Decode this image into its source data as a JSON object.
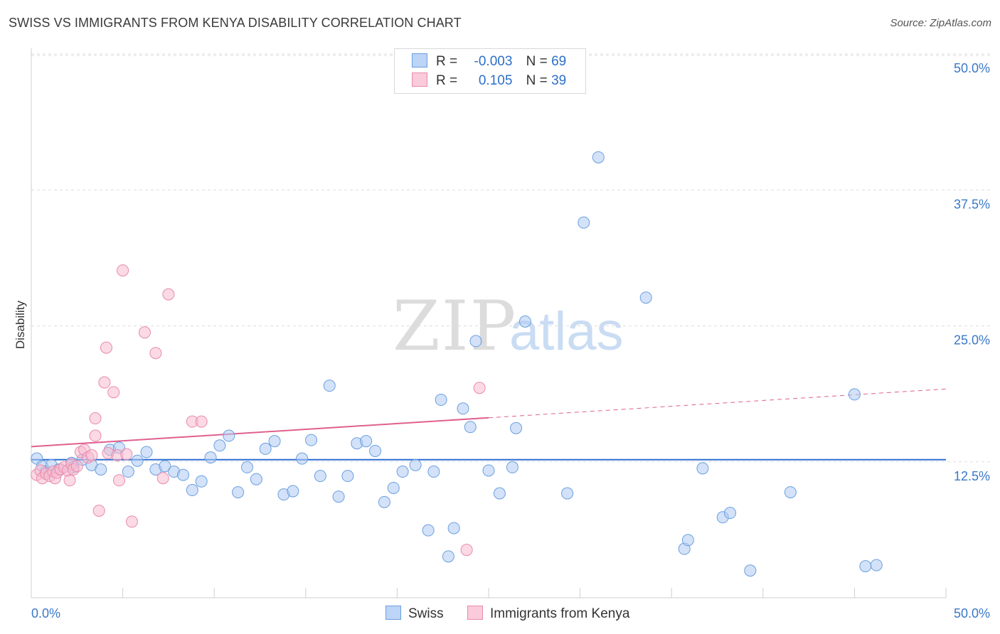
{
  "title": "SWISS VS IMMIGRANTS FROM KENYA DISABILITY CORRELATION CHART",
  "source": "Source: ZipAtlas.com",
  "watermark": {
    "zip": "ZIP",
    "atlas": "atlas"
  },
  "legend": {
    "swiss": {
      "r_label": "R =",
      "r_value": "-0.003",
      "n_label": "N =",
      "n_value": "69"
    },
    "kenya": {
      "r_label": "R =",
      "r_value": "0.105",
      "n_label": "N =",
      "n_value": "39"
    }
  },
  "bottom_legend": {
    "swiss": "Swiss",
    "kenya": "Immigrants from Kenya"
  },
  "colors": {
    "swiss_fill": "#aecbf2",
    "swiss_stroke": "#6a9fe0",
    "swiss_line": "#2c6fd1",
    "kenya_fill": "#f7bcd0",
    "kenya_stroke": "#e98aab",
    "kenya_line": "#e0608f",
    "grid": "#dddddd",
    "axis_label": "#3b78c8"
  },
  "chart_data": {
    "type": "scatter",
    "title": "SWISS VS IMMIGRANTS FROM KENYA DISABILITY CORRELATION CHART",
    "xlabel": "",
    "ylabel": "Disability",
    "xlim": [
      0,
      50
    ],
    "ylim": [
      0,
      50
    ],
    "x_tick_labels": [
      "0.0%",
      "50.0%"
    ],
    "y_ticks": [
      12.5,
      25.0,
      37.5,
      50.0
    ],
    "y_tick_labels": [
      "12.5%",
      "25.0%",
      "37.5%",
      "50.0%"
    ],
    "series": [
      {
        "name": "Swiss",
        "r": -0.003,
        "n": 69,
        "trend": {
          "x0": 0,
          "y0": 12.7,
          "x1": 50,
          "y1": 12.7,
          "solid_until": 50
        },
        "points": [
          [
            0.3,
            12.8
          ],
          [
            0.6,
            12.1
          ],
          [
            0.8,
            11.6
          ],
          [
            1.1,
            12.2
          ],
          [
            1.5,
            11.8
          ],
          [
            2.2,
            12.4
          ],
          [
            2.3,
            12.0
          ],
          [
            2.8,
            12.7
          ],
          [
            3.3,
            12.2
          ],
          [
            3.8,
            11.8
          ],
          [
            4.3,
            13.6
          ],
          [
            4.8,
            13.8
          ],
          [
            5.3,
            11.6
          ],
          [
            5.8,
            12.6
          ],
          [
            6.3,
            13.4
          ],
          [
            6.8,
            11.8
          ],
          [
            7.3,
            12.1
          ],
          [
            7.8,
            11.6
          ],
          [
            8.3,
            11.3
          ],
          [
            8.8,
            9.9
          ],
          [
            9.3,
            10.7
          ],
          [
            9.8,
            12.9
          ],
          [
            10.3,
            14.0
          ],
          [
            10.8,
            14.9
          ],
          [
            11.3,
            9.7
          ],
          [
            11.8,
            12.0
          ],
          [
            12.3,
            10.9
          ],
          [
            12.8,
            13.7
          ],
          [
            13.3,
            14.4
          ],
          [
            13.8,
            9.5
          ],
          [
            14.3,
            9.8
          ],
          [
            14.8,
            12.8
          ],
          [
            15.3,
            14.5
          ],
          [
            15.8,
            11.2
          ],
          [
            16.3,
            19.5
          ],
          [
            16.8,
            9.3
          ],
          [
            17.3,
            11.2
          ],
          [
            17.8,
            14.2
          ],
          [
            18.3,
            14.4
          ],
          [
            18.8,
            13.5
          ],
          [
            19.3,
            8.8
          ],
          [
            19.8,
            10.1
          ],
          [
            20.3,
            11.6
          ],
          [
            21.0,
            12.2
          ],
          [
            21.7,
            6.2
          ],
          [
            22.0,
            11.6
          ],
          [
            22.4,
            18.2
          ],
          [
            22.8,
            3.8
          ],
          [
            23.1,
            6.4
          ],
          [
            23.6,
            17.4
          ],
          [
            24.0,
            15.7
          ],
          [
            24.3,
            23.6
          ],
          [
            25.0,
            11.7
          ],
          [
            25.6,
            9.6
          ],
          [
            26.3,
            12.0
          ],
          [
            26.5,
            15.6
          ],
          [
            27.0,
            25.4
          ],
          [
            29.3,
            9.6
          ],
          [
            30.2,
            34.5
          ],
          [
            31.0,
            40.5
          ],
          [
            33.6,
            27.6
          ],
          [
            35.7,
            4.5
          ],
          [
            35.9,
            5.3
          ],
          [
            36.7,
            11.9
          ],
          [
            37.8,
            7.4
          ],
          [
            38.2,
            7.8
          ],
          [
            39.3,
            2.5
          ],
          [
            41.5,
            9.7
          ],
          [
            45.0,
            18.7
          ],
          [
            45.6,
            2.9
          ],
          [
            46.2,
            3.0
          ]
        ]
      },
      {
        "name": "Immigrants from Kenya",
        "r": 0.105,
        "n": 39,
        "trend": {
          "x0": 0,
          "y0": 13.9,
          "x1": 50,
          "y1": 19.2,
          "solid_until": 25
        },
        "points": [
          [
            0.3,
            11.3
          ],
          [
            0.5,
            11.7
          ],
          [
            0.6,
            11.0
          ],
          [
            0.8,
            11.4
          ],
          [
            1.0,
            11.2
          ],
          [
            1.2,
            11.6
          ],
          [
            1.3,
            11.0
          ],
          [
            1.4,
            11.5
          ],
          [
            1.6,
            11.8
          ],
          [
            1.8,
            12.0
          ],
          [
            2.0,
            11.7
          ],
          [
            2.1,
            10.8
          ],
          [
            2.2,
            12.3
          ],
          [
            2.3,
            11.8
          ],
          [
            2.5,
            12.1
          ],
          [
            2.7,
            13.4
          ],
          [
            2.9,
            13.6
          ],
          [
            3.1,
            12.9
          ],
          [
            3.3,
            13.1
          ],
          [
            3.5,
            14.9
          ],
          [
            3.5,
            16.5
          ],
          [
            3.7,
            8.0
          ],
          [
            4.0,
            19.8
          ],
          [
            4.1,
            23.0
          ],
          [
            4.2,
            13.3
          ],
          [
            4.5,
            18.9
          ],
          [
            4.7,
            13.1
          ],
          [
            4.8,
            10.8
          ],
          [
            5.0,
            30.1
          ],
          [
            5.2,
            13.2
          ],
          [
            5.5,
            7.0
          ],
          [
            6.2,
            24.4
          ],
          [
            6.8,
            22.5
          ],
          [
            7.2,
            11.0
          ],
          [
            7.5,
            27.9
          ],
          [
            8.8,
            16.2
          ],
          [
            9.3,
            16.2
          ],
          [
            23.8,
            4.4
          ],
          [
            24.5,
            19.3
          ]
        ]
      }
    ]
  }
}
